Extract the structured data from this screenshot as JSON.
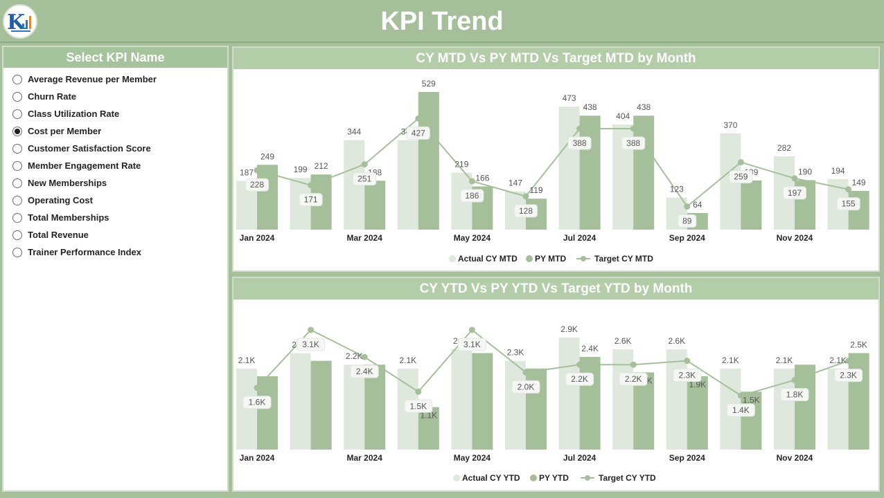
{
  "header": {
    "title": "KPI Trend"
  },
  "logo": {
    "text": "K"
  },
  "colors": {
    "actual": "#dfe8dc",
    "py": "#a5bf9b",
    "target": "#a5bf9b",
    "background": "#a5bf9b"
  },
  "slicer": {
    "title": "Select KPI Name",
    "items": [
      {
        "label": "Average Revenue per Member",
        "checked": false
      },
      {
        "label": "Churn Rate",
        "checked": false
      },
      {
        "label": "Class Utilization Rate",
        "checked": false
      },
      {
        "label": "Cost per Member",
        "checked": true
      },
      {
        "label": "Customer Satisfaction Score",
        "checked": false
      },
      {
        "label": "Member Engagement Rate",
        "checked": false
      },
      {
        "label": "New Memberships",
        "checked": false
      },
      {
        "label": "Operating Cost",
        "checked": false
      },
      {
        "label": "Total Memberships",
        "checked": false
      },
      {
        "label": "Total Revenue",
        "checked": false
      },
      {
        "label": "Trainer Performance Index",
        "checked": false
      }
    ]
  },
  "chart_data": [
    {
      "type": "bar",
      "title": "CY MTD Vs PY MTD Vs Target MTD by Month",
      "categories": [
        "Jan 2024",
        "Feb 2024",
        "Mar 2024",
        "Apr 2024",
        "May 2024",
        "Jun 2024",
        "Jul 2024",
        "Aug 2024",
        "Sep 2024",
        "Oct 2024",
        "Nov 2024",
        "Dec 2024"
      ],
      "tick_labels": [
        "Jan 2024",
        "",
        "Mar 2024",
        "",
        "May 2024",
        "",
        "Jul 2024",
        "",
        "Sep 2024",
        "",
        "Nov 2024",
        ""
      ],
      "series": [
        {
          "name": "Actual CY MTD",
          "kind": "bar",
          "values": [
            187,
            199,
            344,
            344,
            219,
            147,
            473,
            404,
            123,
            370,
            282,
            194
          ],
          "labels": [
            "187",
            "199",
            "344",
            "344",
            "219",
            "147",
            "473",
            "404",
            "123",
            "370",
            "282",
            "194"
          ]
        },
        {
          "name": "PY MTD",
          "kind": "bar",
          "values": [
            249,
            212,
            188,
            529,
            166,
            119,
            438,
            438,
            64,
            189,
            190,
            149
          ],
          "labels": [
            "249",
            "212",
            "188",
            "529",
            "166",
            "119",
            "438",
            "438",
            "64",
            "189",
            "190",
            "149"
          ]
        },
        {
          "name": "Target CY MTD",
          "kind": "line",
          "values": [
            228,
            171,
            251,
            427,
            186,
            128,
            388,
            388,
            89,
            259,
            197,
            155
          ],
          "labels": [
            "228",
            "171",
            "251",
            "427",
            "186",
            "128",
            "388",
            "388",
            "89",
            "259",
            "197",
            "155"
          ]
        }
      ],
      "legend": [
        "Actual CY MTD",
        "PY MTD",
        "Target CY MTD"
      ],
      "legend_position": "bottom",
      "ylim": [
        0,
        529
      ],
      "grid": false
    },
    {
      "type": "bar",
      "title": "CY YTD Vs PY YTD Vs Target YTD by Month",
      "categories": [
        "Jan 2024",
        "Feb 2024",
        "Mar 2024",
        "Apr 2024",
        "May 2024",
        "Jun 2024",
        "Jul 2024",
        "Aug 2024",
        "Sep 2024",
        "Oct 2024",
        "Nov 2024",
        "Dec 2024"
      ],
      "tick_labels": [
        "Jan 2024",
        "",
        "Mar 2024",
        "",
        "May 2024",
        "",
        "Jul 2024",
        "",
        "Sep 2024",
        "",
        "Nov 2024",
        ""
      ],
      "series": [
        {
          "name": "Actual CY YTD",
          "kind": "bar",
          "values": [
            2100,
            2500,
            2200,
            2100,
            2600,
            2300,
            2900,
            2600,
            2600,
            2100,
            2100,
            2100
          ],
          "labels": [
            "2.1K",
            "2.5K",
            "2.2K",
            "2.1K",
            "2.6K",
            "2.3K",
            "2.9K",
            "2.6K",
            "2.6K",
            "2.1K",
            "2.1K",
            "2.1K"
          ]
        },
        {
          "name": "PY YTD",
          "kind": "bar",
          "values": [
            1900,
            2300,
            2200,
            1100,
            2500,
            2100,
            2400,
            2000,
            1900,
            1500,
            2200,
            2500
          ],
          "labels": [
            "",
            "",
            "",
            "",
            "",
            "",
            "2.4K",
            "",
            "",
            "",
            "",
            "2.5K"
          ]
        },
        {
          "name": "Target CY YTD",
          "kind": "line",
          "values": [
            1600,
            3100,
            2400,
            1500,
            3100,
            2000,
            2200,
            2200,
            2300,
            1400,
            1800,
            2300
          ],
          "labels": [
            "1.6K",
            "3.1K",
            "2.4K",
            "1.5K",
            "3.1K",
            "2.0K",
            "2.2K",
            "2.2K",
            "2.3K",
            "1.4K",
            "1.8K",
            "2.3K"
          ]
        }
      ],
      "extra_labels": [
        "",
        "",
        "",
        "1.1K",
        "",
        "",
        "",
        "2.0K",
        "1.9K",
        "1.5K",
        "",
        ""
      ],
      "legend": [
        "Actual CY YTD",
        "PY YTD",
        "Target CY YTD"
      ],
      "legend_position": "bottom",
      "ylim": [
        0,
        3100
      ],
      "grid": false
    }
  ]
}
